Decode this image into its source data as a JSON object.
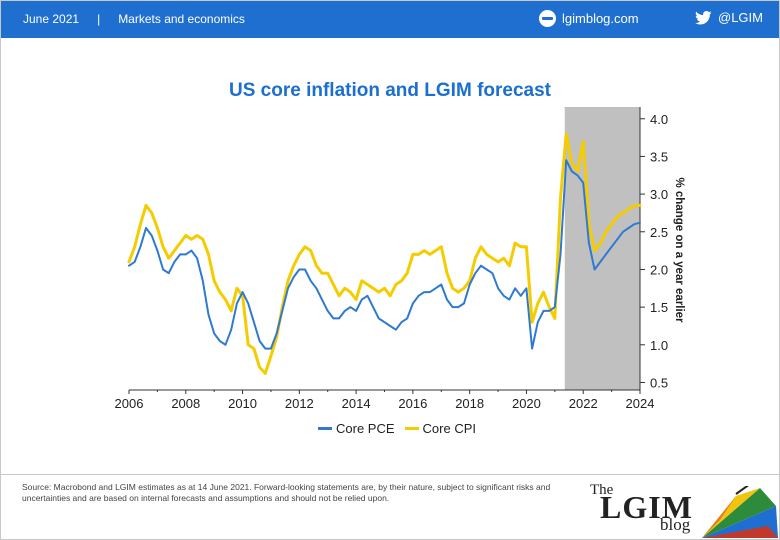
{
  "header": {
    "date": "June 2021",
    "separator": "|",
    "section": "Markets and economics",
    "site": "lgimblog.com",
    "twitter": "@LGIM"
  },
  "colors": {
    "header_bg": "#1f6fd1",
    "title": "#1a6fd0",
    "core_pce": "#2e7ad1",
    "core_cpi": "#f5cc00",
    "forecast_shade": "#c0c0c0"
  },
  "footer": {
    "source": "Source: Macrobond and LGIM estimates as at 14 June 2021. Forward-looking statements are, by their nature, subject to significant risks and uncertainties and are based on internal forecasts and assumptions and should not be relied upon.",
    "brand_the": "The",
    "brand_name": "LGIM",
    "brand_blog": "blog"
  },
  "chart_data": {
    "type": "line",
    "title": "US core inflation and LGIM forecast",
    "xlabel": "",
    "ylabel": "% change on a year earlier",
    "xlim": [
      2006,
      2024
    ],
    "ylim": [
      0.5,
      4.0
    ],
    "x_ticks": [
      "2006",
      "2008",
      "2010",
      "2012",
      "2014",
      "2016",
      "2018",
      "2020",
      "2022",
      "2024"
    ],
    "y_ticks": [
      "0.5",
      "1.0",
      "1.5",
      "2.0",
      "2.5",
      "3.0",
      "3.5",
      "4.0"
    ],
    "y_axis_position": "right",
    "legend_position": "bottom-center",
    "grid": false,
    "forecast_region": [
      2021.35,
      2024
    ],
    "series": [
      {
        "name": "Core PCE",
        "x": [
          2006.0,
          2006.2,
          2006.4,
          2006.6,
          2006.8,
          2007.0,
          2007.2,
          2007.4,
          2007.6,
          2007.8,
          2008.0,
          2008.2,
          2008.4,
          2008.6,
          2008.8,
          2009.0,
          2009.2,
          2009.4,
          2009.6,
          2009.8,
          2010.0,
          2010.2,
          2010.4,
          2010.6,
          2010.8,
          2011.0,
          2011.2,
          2011.4,
          2011.6,
          2011.8,
          2012.0,
          2012.2,
          2012.4,
          2012.6,
          2012.8,
          2013.0,
          2013.2,
          2013.4,
          2013.6,
          2013.8,
          2014.0,
          2014.2,
          2014.4,
          2014.6,
          2014.8,
          2015.0,
          2015.2,
          2015.4,
          2015.6,
          2015.8,
          2016.0,
          2016.2,
          2016.4,
          2016.6,
          2016.8,
          2017.0,
          2017.2,
          2017.4,
          2017.6,
          2017.8,
          2018.0,
          2018.2,
          2018.4,
          2018.6,
          2018.8,
          2019.0,
          2019.2,
          2019.4,
          2019.6,
          2019.8,
          2020.0,
          2020.2,
          2020.4,
          2020.6,
          2020.8,
          2021.0,
          2021.2,
          2021.4,
          2021.6,
          2021.8,
          2022.0,
          2022.2,
          2022.4,
          2022.6,
          2022.8,
          2023.0,
          2023.2,
          2023.4,
          2023.6,
          2023.8,
          2024.0
        ],
        "values": [
          2.05,
          2.1,
          2.3,
          2.55,
          2.45,
          2.25,
          2.0,
          1.95,
          2.1,
          2.2,
          2.2,
          2.25,
          2.15,
          1.85,
          1.4,
          1.15,
          1.05,
          1.0,
          1.2,
          1.55,
          1.7,
          1.55,
          1.3,
          1.05,
          0.95,
          0.95,
          1.15,
          1.45,
          1.75,
          1.9,
          2.0,
          2.0,
          1.85,
          1.75,
          1.6,
          1.45,
          1.35,
          1.35,
          1.45,
          1.5,
          1.45,
          1.6,
          1.65,
          1.5,
          1.35,
          1.3,
          1.25,
          1.2,
          1.3,
          1.35,
          1.55,
          1.65,
          1.7,
          1.7,
          1.75,
          1.8,
          1.6,
          1.5,
          1.5,
          1.55,
          1.8,
          1.95,
          2.05,
          2.0,
          1.95,
          1.75,
          1.65,
          1.6,
          1.75,
          1.65,
          1.75,
          0.95,
          1.3,
          1.45,
          1.45,
          1.5,
          2.2,
          3.45,
          3.3,
          3.25,
          3.15,
          2.35,
          2.0,
          2.1,
          2.2,
          2.3,
          2.4,
          2.5,
          2.55,
          2.6,
          2.62
        ]
      },
      {
        "name": "Core CPI",
        "x": [
          2006.0,
          2006.2,
          2006.4,
          2006.6,
          2006.8,
          2007.0,
          2007.2,
          2007.4,
          2007.6,
          2007.8,
          2008.0,
          2008.2,
          2008.4,
          2008.6,
          2008.8,
          2009.0,
          2009.2,
          2009.4,
          2009.6,
          2009.8,
          2010.0,
          2010.2,
          2010.4,
          2010.6,
          2010.8,
          2011.0,
          2011.2,
          2011.4,
          2011.6,
          2011.8,
          2012.0,
          2012.2,
          2012.4,
          2012.6,
          2012.8,
          2013.0,
          2013.2,
          2013.4,
          2013.6,
          2013.8,
          2014.0,
          2014.2,
          2014.4,
          2014.6,
          2014.8,
          2015.0,
          2015.2,
          2015.4,
          2015.6,
          2015.8,
          2016.0,
          2016.2,
          2016.4,
          2016.6,
          2016.8,
          2017.0,
          2017.2,
          2017.4,
          2017.6,
          2017.8,
          2018.0,
          2018.2,
          2018.4,
          2018.6,
          2018.8,
          2019.0,
          2019.2,
          2019.4,
          2019.6,
          2019.8,
          2020.0,
          2020.2,
          2020.4,
          2020.6,
          2020.8,
          2021.0,
          2021.2,
          2021.4,
          2021.6,
          2021.8,
          2022.0,
          2022.2,
          2022.4,
          2022.6,
          2022.8,
          2023.0,
          2023.2,
          2023.4,
          2023.6,
          2023.8,
          2024.0
        ],
        "values": [
          2.1,
          2.3,
          2.6,
          2.85,
          2.75,
          2.55,
          2.3,
          2.15,
          2.25,
          2.35,
          2.45,
          2.4,
          2.45,
          2.4,
          2.2,
          1.85,
          1.7,
          1.6,
          1.45,
          1.75,
          1.65,
          1.0,
          0.95,
          0.7,
          0.62,
          0.85,
          1.1,
          1.5,
          1.85,
          2.05,
          2.2,
          2.3,
          2.25,
          2.05,
          1.95,
          1.95,
          1.8,
          1.65,
          1.75,
          1.7,
          1.6,
          1.85,
          1.8,
          1.75,
          1.7,
          1.75,
          1.65,
          1.8,
          1.85,
          1.95,
          2.2,
          2.2,
          2.25,
          2.2,
          2.25,
          2.3,
          1.95,
          1.75,
          1.7,
          1.75,
          1.85,
          2.15,
          2.3,
          2.2,
          2.15,
          2.1,
          2.15,
          2.05,
          2.35,
          2.3,
          2.3,
          1.3,
          1.55,
          1.7,
          1.5,
          1.35,
          2.95,
          3.8,
          3.4,
          3.3,
          3.7,
          2.6,
          2.25,
          2.35,
          2.5,
          2.6,
          2.7,
          2.75,
          2.8,
          2.85,
          2.85
        ]
      }
    ]
  }
}
